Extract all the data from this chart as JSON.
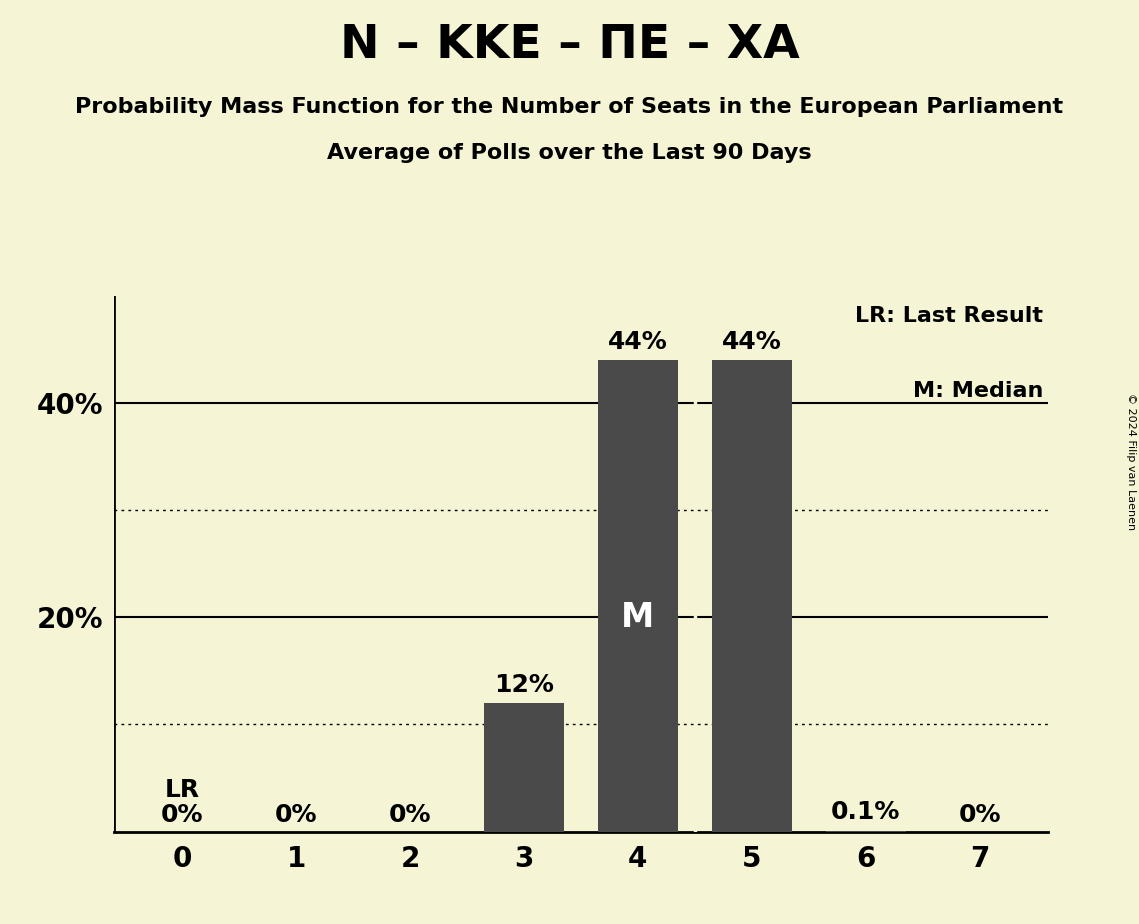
{
  "title_main": "N – KKE – ΠE – XA",
  "subtitle1": "Probability Mass Function for the Number of Seats in the European Parliament",
  "subtitle2": "Average of Polls over the Last 90 Days",
  "copyright": "© 2024 Filip van Laenen",
  "categories": [
    0,
    1,
    2,
    3,
    4,
    5,
    6,
    7
  ],
  "values": [
    0.0,
    0.0,
    0.0,
    0.12,
    0.44,
    0.44,
    0.001,
    0.0
  ],
  "bar_color": "#4a4a4a",
  "bar_labels": [
    "0%",
    "0%",
    "0%",
    "12%",
    "44%",
    "44%",
    "0.1%",
    "0%"
  ],
  "background_color": "#f5f5d5",
  "median_bar": 4,
  "lr_bar": 0,
  "legend_text1": "LR: Last Result",
  "legend_text2": "M: Median",
  "median_label": "M",
  "lr_label": "LR",
  "ylim": [
    0,
    0.5
  ],
  "dotted_lines": [
    0.1,
    0.3
  ],
  "solid_lines": [
    0.2,
    0.4
  ],
  "bar_width": 0.7,
  "title_fontsize": 34,
  "subtitle_fontsize": 16,
  "label_fontsize": 18,
  "tick_fontsize": 20,
  "legend_fontsize": 16,
  "copyright_fontsize": 8
}
